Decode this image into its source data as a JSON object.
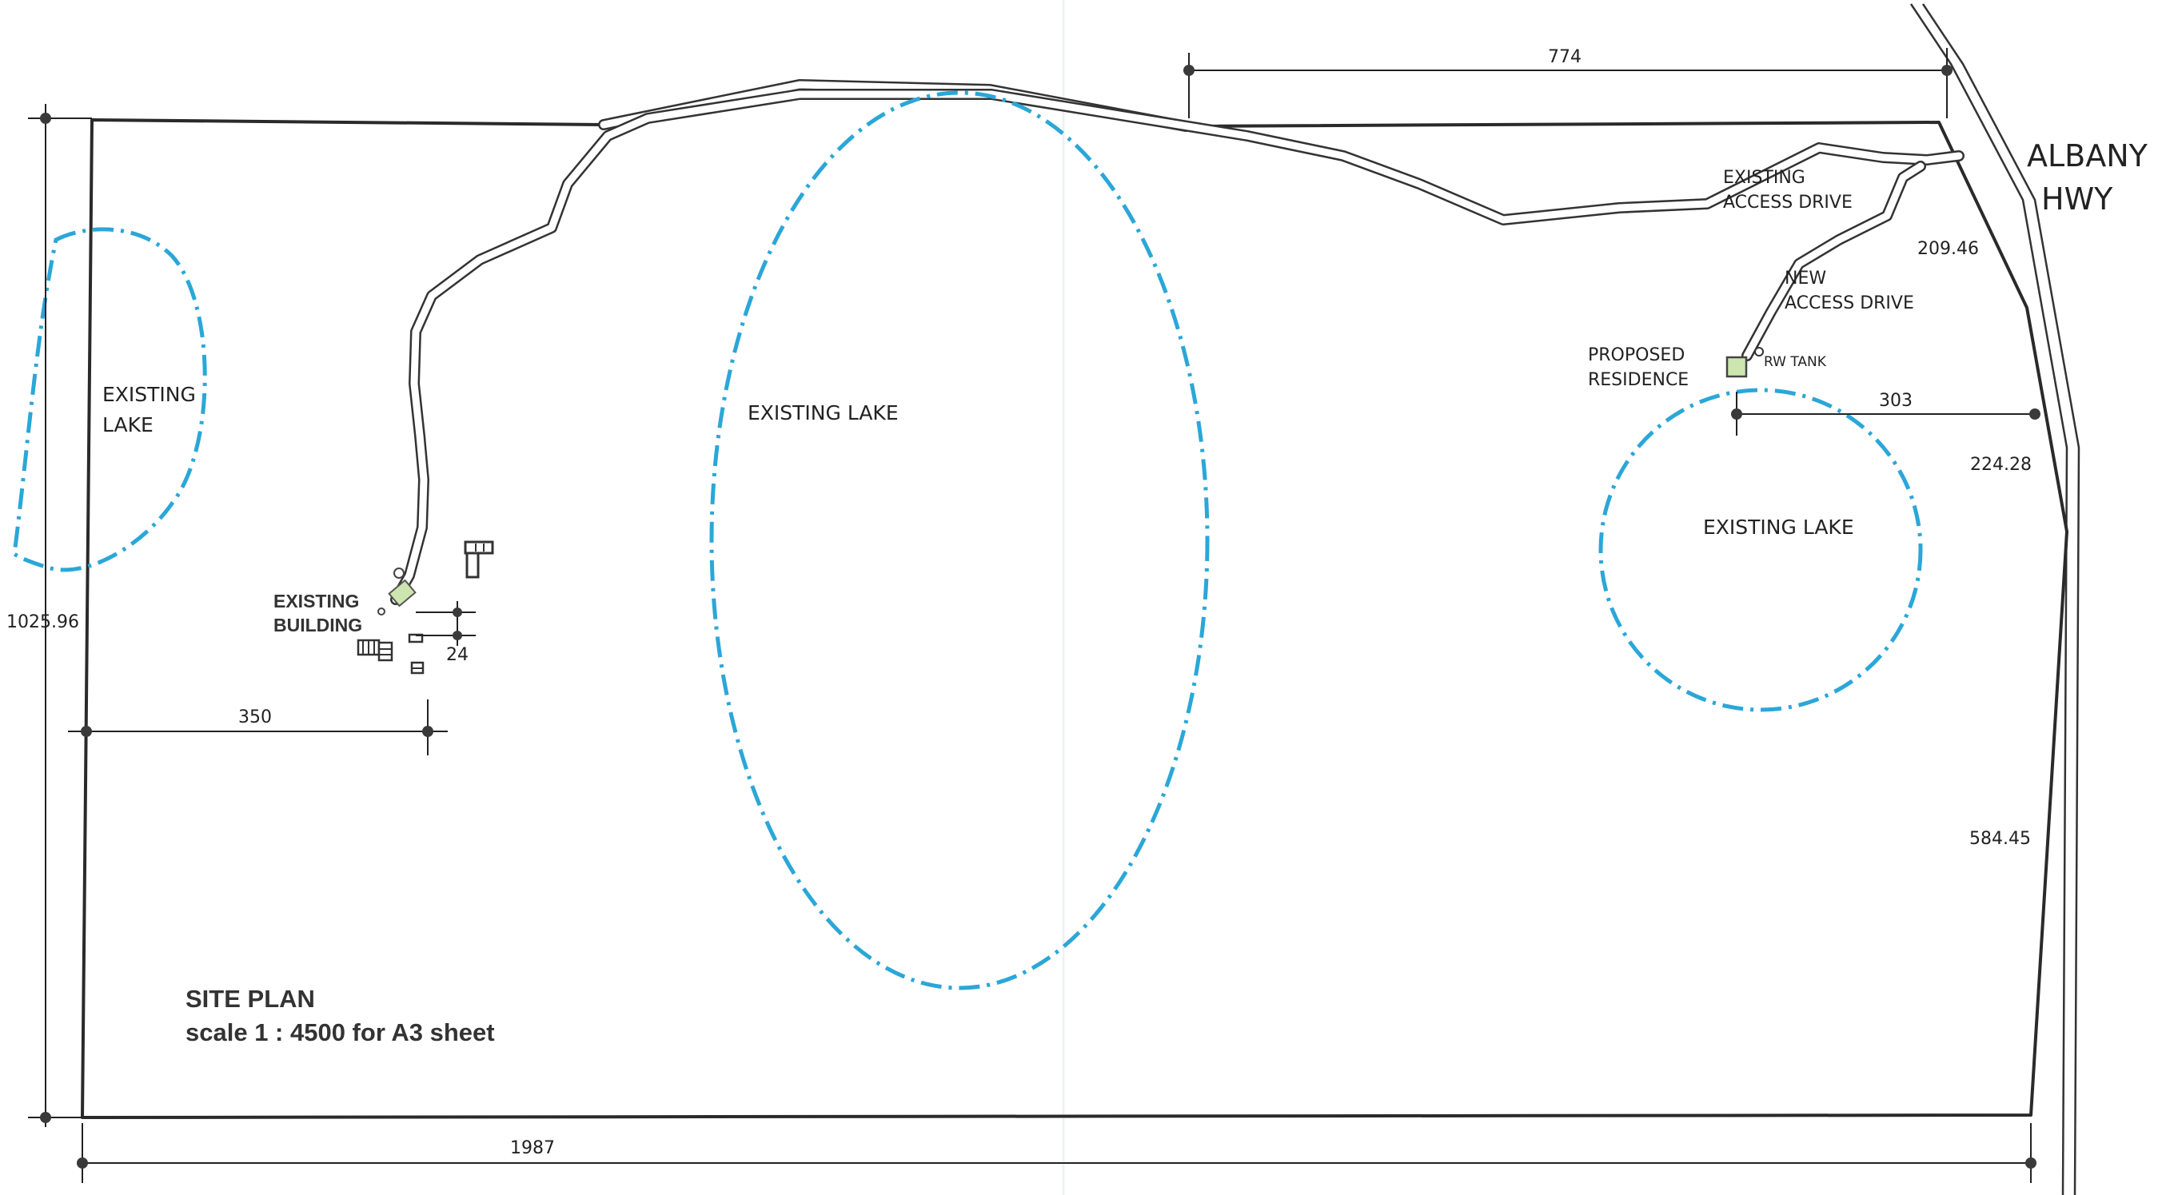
{
  "plan": {
    "title": "SITE PLAN",
    "scale_note": "scale  1 :  4500  for A3 sheet",
    "highway_line1": "ALBANY",
    "highway_line2": "HWY",
    "lakes": {
      "west_line1": "EXISTING",
      "west_line2": "LAKE",
      "central": "EXISTING LAKE",
      "east": "EXISTING LAKE"
    },
    "existing_building_line1": "EXISTING",
    "existing_building_line2": "BUILDING",
    "existing_drive_line1": "EXISTING",
    "existing_drive_line2": "ACCESS DRIVE",
    "new_drive_line1": "NEW",
    "new_drive_line2": "ACCESS DRIVE",
    "proposed_line1": "PROPOSED",
    "proposed_line2": "RESIDENCE",
    "rw_tank": "RW TANK",
    "dimensions": {
      "top": "774",
      "bottom": "1987",
      "left": "1025.96",
      "building_offset": "350",
      "building_side": "24",
      "residence_offset": "303",
      "east_upper": "209.46",
      "east_mid": "224.28",
      "east_lower": "584.45"
    },
    "colors": {
      "lake": "#2aa7d8",
      "building": "#cde6b0",
      "lines": "#2a2a2a"
    }
  }
}
